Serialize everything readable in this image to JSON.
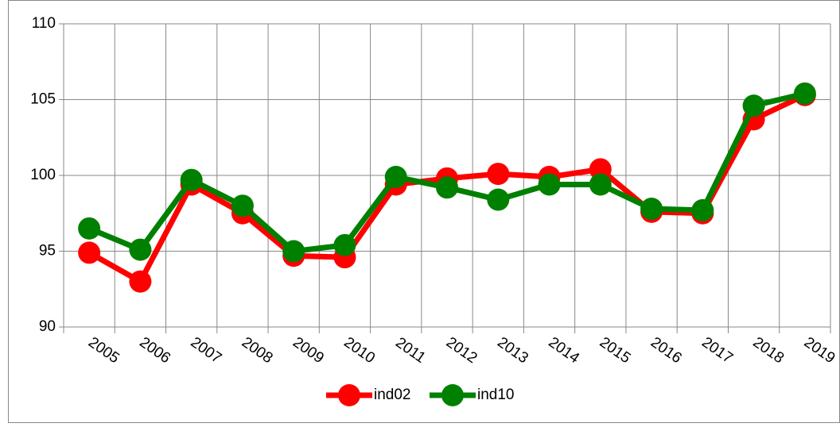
{
  "chart_data": {
    "type": "line",
    "categories": [
      "2005",
      "2006",
      "2007",
      "2008",
      "2009",
      "2010",
      "2011",
      "2012",
      "2013",
      "2014",
      "2015",
      "2016",
      "2017",
      "2018",
      "2019"
    ],
    "series": [
      {
        "name": "ind02",
        "color": "#ff0000",
        "values": [
          94.9,
          93.0,
          99.4,
          97.5,
          94.7,
          94.6,
          99.4,
          99.8,
          100.1,
          99.9,
          100.4,
          97.6,
          97.5,
          103.7,
          105.3
        ]
      },
      {
        "name": "ind10",
        "color": "#008000",
        "values": [
          96.5,
          95.1,
          99.7,
          98.0,
          95.0,
          95.4,
          99.9,
          99.2,
          98.4,
          99.4,
          99.4,
          97.8,
          97.7,
          104.6,
          105.4
        ]
      }
    ],
    "ylim": [
      90,
      110
    ],
    "yticks": [
      90,
      95,
      100,
      105,
      110
    ],
    "grid": true,
    "legend": "bottom"
  }
}
